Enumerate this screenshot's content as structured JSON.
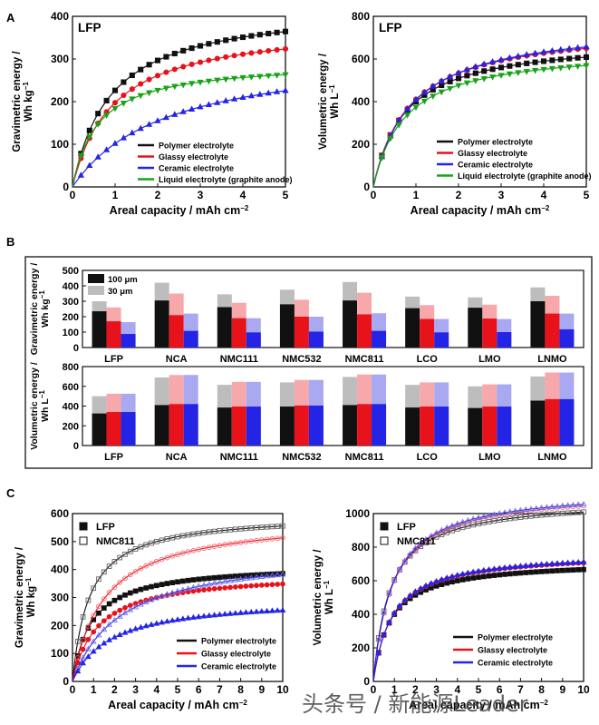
{
  "figure": {
    "panel_labels": [
      "A",
      "B",
      "C"
    ],
    "watermark": "头条号 / 新能源Leader",
    "colors": {
      "black": "#111111",
      "red": "#e8121b",
      "blue": "#2424e6",
      "green": "#18a318",
      "red_light": "#f7a8ab",
      "blue_light": "#a9a9f2",
      "gray": "#bdbdbd"
    }
  },
  "chart_data": [
    {
      "id": "A1",
      "type": "line",
      "title": "LFP",
      "xlabel": "Areal capacity / mAh cm",
      "xlabel_sup": "−2",
      "ylabel": [
        "Gravimetric energy /",
        "Wh kg"
      ],
      "ylabel_sup": "−1",
      "xlim": [
        0,
        5
      ],
      "ylim": [
        0,
        400
      ],
      "xticks": [
        "0",
        "1",
        "2",
        "3",
        "4",
        "5"
      ],
      "yticks": [
        "0",
        "100",
        "200",
        "300",
        "400"
      ],
      "legend_position": "lower-right",
      "series": [
        {
          "name": "Polymer electrolyte",
          "color": "#111111",
          "marker": "square",
          "model": {
            "max": 430,
            "k": 0.9
          }
        },
        {
          "name": "Glassy electrolyte",
          "color": "#e8121b",
          "marker": "circle",
          "model": {
            "max": 385,
            "k": 0.95
          }
        },
        {
          "name": "Ceramic electrolyte",
          "color": "#2424e6",
          "marker": "triangle-up",
          "model": {
            "max": 325,
            "k": 2.2
          }
        },
        {
          "name": "Liquid electrolyte (graphite anode)",
          "color": "#18a318",
          "marker": "triangle-down",
          "model": {
            "max": 295,
            "k": 0.6
          }
        }
      ]
    },
    {
      "id": "A2",
      "type": "line",
      "title": "LFP",
      "xlabel": "Areal capacity / mAh cm",
      "xlabel_sup": "−2",
      "ylabel": [
        "Volumetric energy /",
        "Wh L"
      ],
      "ylabel_sup": "−1",
      "xlim": [
        0,
        5
      ],
      "ylim": [
        0,
        800
      ],
      "xticks": [
        "0",
        "1",
        "2",
        "3",
        "4",
        "5"
      ],
      "yticks": [
        "0",
        "200",
        "400",
        "600",
        "800"
      ],
      "legend_position": "lower-right",
      "series": [
        {
          "name": "Polymer electrolyte",
          "color": "#111111",
          "marker": "square",
          "model": {
            "max": 700,
            "k": 0.75
          }
        },
        {
          "name": "Glassy electrolyte",
          "color": "#e8121b",
          "marker": "circle",
          "model": {
            "max": 760,
            "k": 0.85
          }
        },
        {
          "name": "Ceramic electrolyte",
          "color": "#2424e6",
          "marker": "triangle-up",
          "model": {
            "max": 775,
            "k": 0.9
          }
        },
        {
          "name": "Liquid electrolyte (graphite anode)",
          "color": "#18a318",
          "marker": "triangle-down",
          "model": {
            "max": 655,
            "k": 0.75
          }
        }
      ]
    },
    {
      "id": "B1",
      "type": "bar",
      "ylabel": [
        "Gravimetric energy /",
        "Wh kg"
      ],
      "ylabel_sup": "−1",
      "ylim": [
        0,
        500
      ],
      "yticks": [
        "0",
        "100",
        "200",
        "300",
        "400",
        "500"
      ],
      "legend": [
        {
          "label": "100 μm",
          "color": "#111111"
        },
        {
          "label": "30 μm",
          "color": "#bdbdbd"
        }
      ],
      "categories": [
        "LFP",
        "NCA",
        "NMC111",
        "NMC532",
        "NMC811",
        "LCO",
        "LMO",
        "LNMO"
      ],
      "groups": [
        {
          "name": "Polymer electrolyte",
          "thick": [
            235,
            305,
            262,
            280,
            305,
            255,
            258,
            300
          ],
          "thin": [
            300,
            420,
            345,
            375,
            425,
            330,
            325,
            390
          ]
        },
        {
          "name": "Glassy electrolyte",
          "thick": [
            170,
            210,
            190,
            200,
            215,
            185,
            188,
            220
          ],
          "thin": [
            260,
            350,
            290,
            310,
            355,
            275,
            278,
            335
          ]
        },
        {
          "name": "Ceramic electrolyte",
          "thick": [
            88,
            108,
            98,
            103,
            108,
            98,
            100,
            118
          ],
          "thin": [
            165,
            220,
            190,
            200,
            222,
            185,
            185,
            220
          ]
        }
      ]
    },
    {
      "id": "B2",
      "type": "bar",
      "ylabel": [
        "Volumetric energy /",
        "Wh L"
      ],
      "ylabel_sup": "−1",
      "ylim": [
        0,
        800
      ],
      "yticks": [
        "0",
        "200",
        "400",
        "600",
        "800"
      ],
      "categories": [
        "LFP",
        "NCA",
        "NMC111",
        "NMC532",
        "NMC811",
        "LCO",
        "LMO",
        "LNMO"
      ],
      "groups": [
        {
          "name": "Polymer electrolyte",
          "thick": [
            325,
            410,
            385,
            395,
            410,
            385,
            380,
            455
          ],
          "thin": [
            500,
            690,
            615,
            640,
            695,
            615,
            600,
            700
          ]
        },
        {
          "name": "Glassy electrolyte",
          "thick": [
            340,
            420,
            395,
            405,
            420,
            395,
            395,
            470
          ],
          "thin": [
            525,
            715,
            645,
            665,
            720,
            640,
            620,
            740
          ]
        },
        {
          "name": "Ceramic electrolyte",
          "thick": [
            340,
            420,
            395,
            405,
            420,
            395,
            395,
            470
          ],
          "thin": [
            525,
            715,
            645,
            665,
            720,
            640,
            620,
            740
          ]
        }
      ]
    },
    {
      "id": "C1",
      "type": "line",
      "xlabel": "Areal capacity / mAh cm",
      "xlabel_sup": "−2",
      "ylabel": [
        "Gravimetric energy /",
        "Wh kg"
      ],
      "ylabel_sup": "−1",
      "xlim": [
        0,
        10
      ],
      "ylim": [
        0,
        600
      ],
      "xticks": [
        "0",
        "1",
        "2",
        "3",
        "4",
        "5",
        "6",
        "7",
        "8",
        "9",
        "10"
      ],
      "yticks": [
        "0",
        "100",
        "200",
        "300",
        "400",
        "500",
        "600"
      ],
      "marker_legend": [
        {
          "label": "LFP",
          "style": "filled"
        },
        {
          "label": "NMC811",
          "style": "open"
        }
      ],
      "legend_position": "lower-right",
      "series": [
        {
          "name": "Polymer electrolyte",
          "color": "#111111",
          "marker": "square",
          "model_lfp": {
            "max": 420,
            "k": 0.9
          },
          "model_nmc": {
            "max": 600,
            "k": 0.8
          }
        },
        {
          "name": "Glassy electrolyte",
          "color": "#e8121b",
          "marker": "circle",
          "model_lfp": {
            "max": 390,
            "k": 1.2
          },
          "model_nmc": {
            "max": 590,
            "k": 1.5
          }
        },
        {
          "name": "Ceramic electrolyte",
          "color": "#2424e6",
          "marker": "triangle-up",
          "model_lfp": {
            "max": 300,
            "k": 1.8
          },
          "model_nmc": {
            "max": 470,
            "k": 2.3
          }
        }
      ]
    },
    {
      "id": "C2",
      "type": "line",
      "xlabel": "Areal capacity / mAh cm",
      "xlabel_sup": "−2",
      "ylabel": [
        "Volumetric energy /",
        "Wh L"
      ],
      "ylabel_sup": "−1",
      "xlim": [
        0,
        10
      ],
      "ylim": [
        0,
        1000
      ],
      "xticks": [
        "0",
        "1",
        "2",
        "3",
        "4",
        "5",
        "6",
        "7",
        "8",
        "9",
        "10"
      ],
      "yticks": [
        "0",
        "200",
        "400",
        "600",
        "800",
        "1000"
      ],
      "marker_legend": [
        {
          "label": "LFP",
          "style": "filled"
        },
        {
          "label": "NMC811",
          "style": "open"
        }
      ],
      "legend_position": "lower-right",
      "series": [
        {
          "name": "Polymer electrolyte",
          "color": "#111111",
          "marker": "square",
          "model_lfp": {
            "max": 720,
            "k": 0.8
          },
          "model_nmc": {
            "max": 1090,
            "k": 0.8
          }
        },
        {
          "name": "Glassy electrolyte",
          "color": "#e8121b",
          "marker": "circle",
          "model_lfp": {
            "max": 770,
            "k": 0.9
          },
          "model_nmc": {
            "max": 1140,
            "k": 0.9
          }
        },
        {
          "name": "Ceramic electrolyte",
          "color": "#2424e6",
          "marker": "triangle-up",
          "model_lfp": {
            "max": 775,
            "k": 0.9
          },
          "model_nmc": {
            "max": 1150,
            "k": 0.9
          }
        }
      ]
    }
  ]
}
